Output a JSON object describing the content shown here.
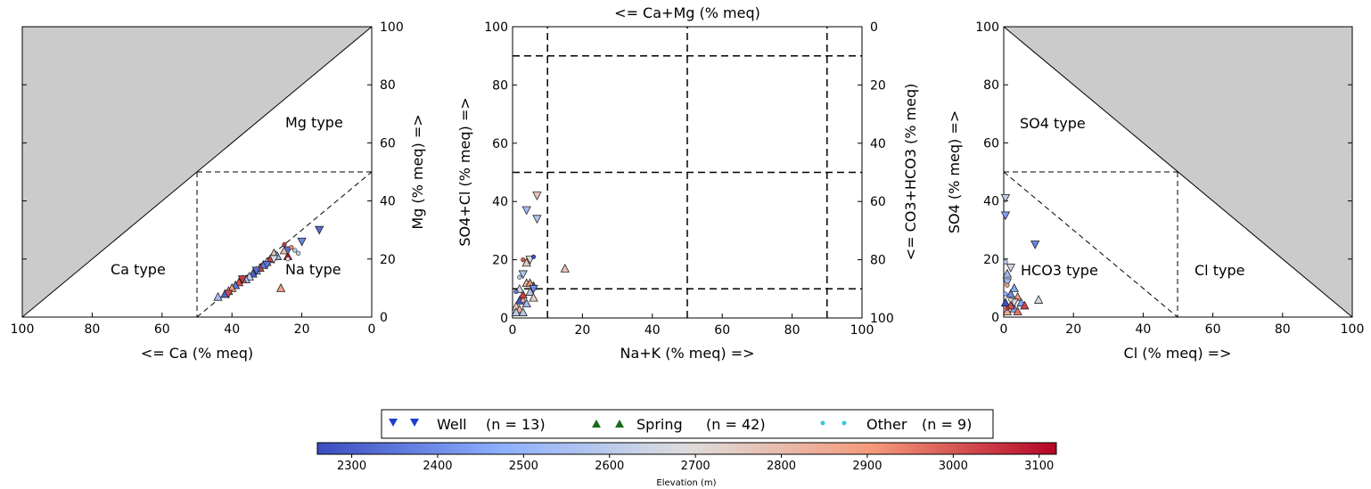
{
  "chart_data": [
    {
      "type": "scatter",
      "panel": "cation-triangle",
      "xlabel": "<= Ca (% meq)",
      "ylabel": "Mg (% meq) =>",
      "xlim": [
        100,
        0
      ],
      "ylim": [
        0,
        100
      ],
      "x_ticks": [
        "100",
        "80",
        "60",
        "40",
        "20",
        "0"
      ],
      "y_ticks": [
        "0",
        "20",
        "40",
        "60",
        "80",
        "100"
      ],
      "region_labels": [
        "Mg type",
        "Ca type",
        "Na type"
      ],
      "well_points": [
        [
          15,
          30
        ],
        [
          20,
          26
        ],
        [
          24,
          23
        ],
        [
          28,
          20
        ],
        [
          30,
          18
        ],
        [
          33,
          16
        ],
        [
          37,
          13
        ],
        [
          41,
          8
        ]
      ],
      "spring_points": [
        [
          26,
          10
        ],
        [
          28,
          22
        ],
        [
          29,
          20
        ],
        [
          30,
          19
        ],
        [
          31,
          18
        ],
        [
          32,
          17
        ],
        [
          33,
          16
        ],
        [
          34,
          15
        ],
        [
          35,
          14
        ],
        [
          36,
          13
        ],
        [
          37,
          13
        ],
        [
          38,
          12
        ],
        [
          39,
          11
        ],
        [
          40,
          10
        ],
        [
          41,
          9
        ],
        [
          42,
          8
        ],
        [
          44,
          7
        ],
        [
          27,
          21
        ],
        [
          25,
          23
        ],
        [
          24,
          21
        ]
      ],
      "other_points": [
        [
          22,
          23
        ],
        [
          23,
          24
        ],
        [
          25,
          25
        ],
        [
          21,
          22
        ],
        [
          24,
          20
        ]
      ]
    },
    {
      "type": "scatter",
      "panel": "central-diamond",
      "title": "<= Ca+Mg (% meq)",
      "xlabel": "Na+K (% meq) =>",
      "ylabel": "SO4+Cl (% meq) =>",
      "ylabel_right": "<= CO3+HCO3 (% meq)",
      "xlim": [
        0,
        100
      ],
      "ylim": [
        0,
        100
      ],
      "x_ticks": [
        "0",
        "20",
        "40",
        "60",
        "80",
        "100"
      ],
      "y_ticks": [
        "0",
        "20",
        "40",
        "60",
        "80",
        "100"
      ],
      "y_ticks_right": [
        "100",
        "80",
        "60",
        "40",
        "20",
        "0"
      ],
      "well_points": [
        [
          7,
          42
        ],
        [
          4,
          37
        ],
        [
          7,
          34
        ],
        [
          5,
          20
        ],
        [
          3,
          15
        ],
        [
          6,
          10
        ]
      ],
      "spring_points": [
        [
          15,
          17
        ],
        [
          4,
          12
        ],
        [
          6,
          11
        ],
        [
          5,
          9
        ],
        [
          3,
          8
        ],
        [
          2,
          6
        ],
        [
          1,
          4
        ],
        [
          2,
          3
        ],
        [
          4,
          5
        ],
        [
          6,
          7
        ],
        [
          1,
          2
        ],
        [
          3,
          2
        ],
        [
          5,
          12
        ],
        [
          2,
          10
        ],
        [
          4,
          19
        ]
      ],
      "other_points": [
        [
          3,
          20
        ],
        [
          6,
          21
        ],
        [
          2,
          14
        ],
        [
          1,
          9
        ],
        [
          3,
          6
        ]
      ]
    },
    {
      "type": "scatter",
      "panel": "anion-triangle",
      "xlabel": "Cl (% meq) =>",
      "ylabel": "SO4 (% meq) =>",
      "xlim": [
        0,
        100
      ],
      "ylim": [
        0,
        100
      ],
      "x_ticks": [
        "0",
        "20",
        "40",
        "60",
        "80",
        "100"
      ],
      "y_ticks": [
        "0",
        "20",
        "40",
        "60",
        "80",
        "100"
      ],
      "region_labels": [
        "SO4 type",
        "HCO3 type",
        "Cl type"
      ],
      "well_points": [
        [
          0.5,
          41
        ],
        [
          0.5,
          35
        ],
        [
          2,
          17
        ],
        [
          9,
          25
        ],
        [
          1,
          12
        ],
        [
          3,
          5
        ]
      ],
      "spring_points": [
        [
          10,
          6
        ],
        [
          4,
          7
        ],
        [
          5,
          5
        ],
        [
          3,
          3
        ],
        [
          1,
          2
        ],
        [
          2,
          8
        ],
        [
          6,
          4
        ],
        [
          1,
          15
        ],
        [
          3,
          10
        ],
        [
          4,
          2
        ],
        [
          0.5,
          5
        ],
        [
          2,
          4
        ]
      ],
      "other_points": [
        [
          0.5,
          19
        ],
        [
          1,
          11
        ],
        [
          0.5,
          8
        ],
        [
          2,
          6
        ],
        [
          1,
          3
        ]
      ]
    }
  ],
  "legend": {
    "items": [
      {
        "name": "Well",
        "n_label": "(n = 13)",
        "marker": "triangle-down",
        "color": "#1f3fd0"
      },
      {
        "name": "Spring",
        "n_label": "(n = 42)",
        "marker": "triangle-up",
        "color": "#1a6b1a"
      },
      {
        "name": "Other",
        "n_label": "(n = 9)",
        "marker": "dot",
        "color": "#3ac8d8"
      }
    ]
  },
  "colorbar": {
    "label": "Elevation (m)",
    "min": 2260,
    "max": 3120,
    "ticks": [
      2300,
      2400,
      2500,
      2600,
      2700,
      2800,
      2900,
      3000,
      3100
    ],
    "colormap": "coolwarm"
  },
  "colors": {
    "shade": "#cbcbcb",
    "low": "#3b4cc0",
    "mid": "#dddddd",
    "high": "#b40426"
  }
}
